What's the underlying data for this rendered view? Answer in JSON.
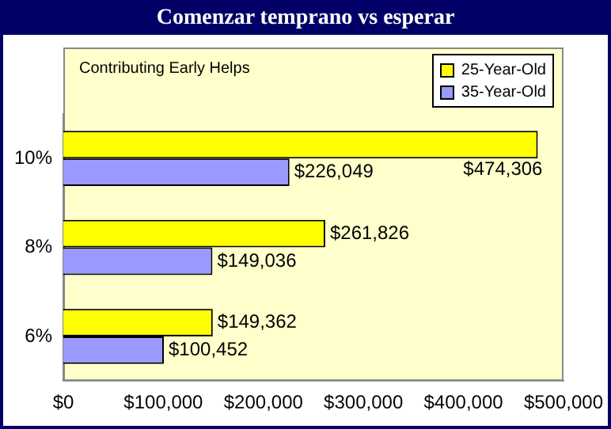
{
  "chart_data": {
    "type": "bar",
    "orientation": "horizontal",
    "title": "Comenzar temprano vs esperar",
    "annotations": [
      "Contributing Early Helps"
    ],
    "categories": [
      "10%",
      "8%",
      "6%"
    ],
    "series": [
      {
        "name": "25-Year-Old",
        "color": "#ffff00",
        "values": [
          474306,
          261826,
          149362
        ],
        "value_labels": [
          "$474,306",
          "$261,826",
          "$149,362"
        ]
      },
      {
        "name": "35-Year-Old",
        "color": "#9999ff",
        "values": [
          226049,
          149036,
          100452
        ],
        "value_labels": [
          "$226,049",
          "$149,036",
          "$100,452"
        ]
      }
    ],
    "xlim": [
      0,
      500000
    ],
    "xticks": [
      {
        "value": 0,
        "label": "$0"
      },
      {
        "value": 100000,
        "label": "$100,000"
      },
      {
        "value": 200000,
        "label": "$200,000"
      },
      {
        "value": 300000,
        "label": "$300,000"
      },
      {
        "value": 400000,
        "label": "$400,000"
      },
      {
        "value": 500000,
        "label": "$500,000"
      }
    ],
    "grid": false,
    "legend": "top right"
  }
}
